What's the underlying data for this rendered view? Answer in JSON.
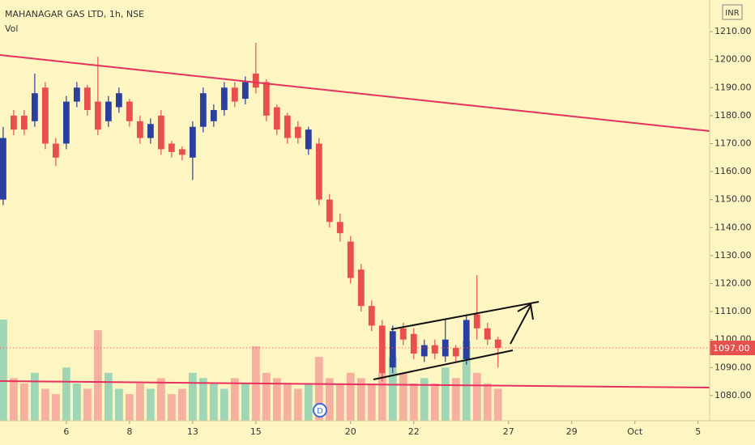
{
  "chart_data": {
    "type": "candlestick",
    "title": "MAHANAGAR GAS LTD, 1h, NSE",
    "volume_label": "Vol",
    "currency": "INR",
    "up_color": "#2a3f9e",
    "down_color": "#e8504d",
    "volume_up_color": "#8fcfb4",
    "volume_down_color": "#f3a39a",
    "open": [
      1150,
      1180,
      1180,
      1178,
      1190,
      1170,
      1170,
      1185,
      1190,
      1185,
      1178,
      1183,
      1185,
      1178,
      1172,
      1180,
      1170,
      1168,
      1165,
      1176,
      1178,
      1182,
      1190,
      1186,
      1195,
      1192,
      1183,
      1180,
      1176,
      1168,
      1170,
      1150,
      1142,
      1135,
      1125,
      1112,
      1105,
      1090,
      1104,
      1102,
      1094,
      1098,
      1094,
      1097,
      1093,
      1109,
      1104,
      1100
    ],
    "high": [
      1176,
      1182,
      1182,
      1195,
      1192,
      1172,
      1187,
      1192,
      1191,
      1201,
      1187,
      1190,
      1186,
      1180,
      1179,
      1182,
      1171,
      1169,
      1178,
      1190,
      1184,
      1192,
      1192,
      1194,
      1206,
      1193,
      1184,
      1181,
      1178,
      1176,
      1172,
      1152,
      1145,
      1137,
      1127,
      1114,
      1107,
      1105,
      1106,
      1104,
      1100,
      1100,
      1107,
      1098,
      1109,
      1123,
      1106,
      1101
    ],
    "low": [
      1148,
      1173,
      1173,
      1176,
      1168,
      1162,
      1168,
      1183,
      1180,
      1173,
      1176,
      1181,
      1176,
      1170,
      1170,
      1166,
      1165,
      1164,
      1157,
      1174,
      1176,
      1180,
      1183,
      1184,
      1188,
      1178,
      1173,
      1170,
      1170,
      1166,
      1148,
      1140,
      1135,
      1120,
      1110,
      1103,
      1085,
      1088,
      1098,
      1093,
      1092,
      1093,
      1092,
      1092,
      1091,
      1100,
      1098,
      1090
    ],
    "close": [
      1172,
      1175,
      1175,
      1188,
      1170,
      1165,
      1185,
      1190,
      1182,
      1175,
      1185,
      1188,
      1178,
      1172,
      1177,
      1168,
      1167,
      1166,
      1176,
      1188,
      1182,
      1190,
      1185,
      1192,
      1190,
      1180,
      1175,
      1172,
      1172,
      1175,
      1150,
      1142,
      1138,
      1122,
      1112,
      1105,
      1088,
      1103,
      1100,
      1095,
      1098,
      1095,
      1100,
      1094,
      1107,
      1104,
      1100,
      1097
    ],
    "volume": [
      95,
      40,
      35,
      45,
      30,
      25,
      50,
      35,
      30,
      85,
      45,
      30,
      25,
      35,
      30,
      40,
      25,
      30,
      45,
      40,
      35,
      30,
      40,
      35,
      70,
      45,
      40,
      35,
      30,
      35,
      60,
      40,
      35,
      45,
      40,
      35,
      45,
      60,
      45,
      35,
      40,
      35,
      50,
      40,
      75,
      45,
      35,
      30
    ],
    "xlim": [
      -0.3,
      67.1
    ],
    "xticks": [
      {
        "value": 6,
        "label": "6"
      },
      {
        "value": 12,
        "label": "8"
      },
      {
        "value": 18,
        "label": "13"
      },
      {
        "value": 24,
        "label": "15"
      },
      {
        "value": 33,
        "label": "20"
      },
      {
        "value": 39,
        "label": "22"
      },
      {
        "value": 48,
        "label": "27"
      },
      {
        "value": 54,
        "label": "29"
      },
      {
        "value": 60,
        "label": "Oct"
      },
      {
        "value": 66,
        "label": "5"
      }
    ],
    "ylim": [
      1071,
      1221.3
    ],
    "yticks": [
      {
        "value": 1080,
        "label": "1080.00"
      },
      {
        "value": 1090,
        "label": "1090.00"
      },
      {
        "value": 1100,
        "label": "1100.00"
      },
      {
        "value": 1110,
        "label": "1110.00"
      },
      {
        "value": 1120,
        "label": "1120.00"
      },
      {
        "value": 1130,
        "label": "1130.00"
      },
      {
        "value": 1140,
        "label": "1140.00"
      },
      {
        "value": 1150,
        "label": "1150.00"
      },
      {
        "value": 1160,
        "label": "1160.00"
      },
      {
        "value": 1170,
        "label": "1170.00"
      },
      {
        "value": 1180,
        "label": "1180.00"
      },
      {
        "value": 1190,
        "label": "1190.00"
      },
      {
        "value": 1200,
        "label": "1200.00"
      },
      {
        "value": 1210,
        "label": "1210.00"
      }
    ],
    "last_price": {
      "value": 1097,
      "label": "1097.00"
    },
    "last_price_color": "#e8504d"
  }
}
